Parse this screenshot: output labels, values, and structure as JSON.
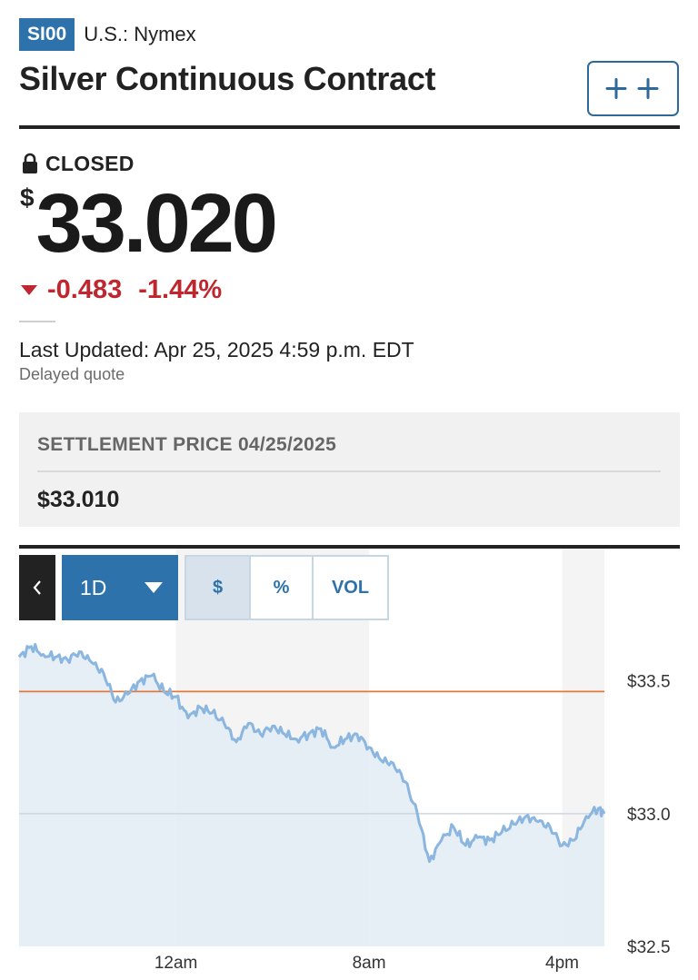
{
  "header": {
    "ticker": "SI00",
    "exchange": "U.S.: Nymex",
    "title": "Silver Continuous Contract",
    "watchlist_icon": "plus-plus-icon"
  },
  "quote": {
    "status": "CLOSED",
    "status_icon": "lock-icon",
    "currency_symbol": "$",
    "price": "33.020",
    "change": "-0.483",
    "change_percent": "-1.44%",
    "change_direction": "down",
    "last_updated": "Last Updated: Apr 25, 2025 4:59 p.m. EDT",
    "delayed_note": "Delayed quote"
  },
  "settlement": {
    "label": "SETTLEMENT PRICE 04/25/2025",
    "value": "$33.010"
  },
  "chart_toolbar": {
    "back_icon": "chevron-left-icon",
    "range": "1D",
    "modes": [
      {
        "label": "$",
        "active": true
      },
      {
        "label": "%",
        "active": false
      },
      {
        "label": "VOL",
        "active": false
      }
    ]
  },
  "colors": {
    "accent": "#2d72aa",
    "negative": "#c0262d",
    "line": "#8ab6df",
    "area": "#e2ebf4",
    "reference_line": "#e07a3c"
  },
  "chart_data": {
    "type": "area",
    "x_ticks": [
      "12am",
      "8am",
      "4pm"
    ],
    "y_ticks": [
      "$33.5",
      "$33.0",
      "$32.5"
    ],
    "ylim": [
      32.5,
      33.67
    ],
    "reference_value": 33.46,
    "grid": true,
    "x": [
      -6.5,
      -6.0,
      -5.5,
      -5.0,
      -4.5,
      -4.0,
      -3.5,
      -3.0,
      -2.5,
      -2.0,
      -1.5,
      -1.0,
      -0.5,
      0.0,
      0.5,
      1.0,
      1.5,
      2.0,
      2.5,
      3.0,
      3.5,
      4.0,
      4.5,
      5.0,
      5.5,
      6.0,
      6.5,
      7.0,
      7.5,
      8.0,
      8.5,
      9.0,
      9.5,
      10.0,
      10.5,
      11.0,
      11.5,
      12.0,
      12.5,
      13.0,
      13.5,
      14.0,
      14.5,
      15.0,
      15.5,
      16.0,
      16.5,
      17.0,
      17.5,
      17.75
    ],
    "y": [
      33.59,
      33.63,
      33.6,
      33.59,
      33.58,
      33.61,
      33.57,
      33.53,
      33.42,
      33.45,
      33.5,
      33.52,
      33.46,
      33.44,
      33.36,
      33.4,
      33.38,
      33.34,
      33.27,
      33.34,
      33.3,
      33.33,
      33.3,
      33.28,
      33.3,
      33.32,
      33.25,
      33.28,
      33.3,
      33.25,
      33.2,
      33.19,
      33.12,
      33.0,
      32.82,
      32.9,
      32.95,
      32.88,
      32.91,
      32.9,
      32.93,
      32.96,
      32.99,
      32.97,
      32.95,
      32.88,
      32.9,
      32.99,
      33.02,
      33.0
    ]
  }
}
